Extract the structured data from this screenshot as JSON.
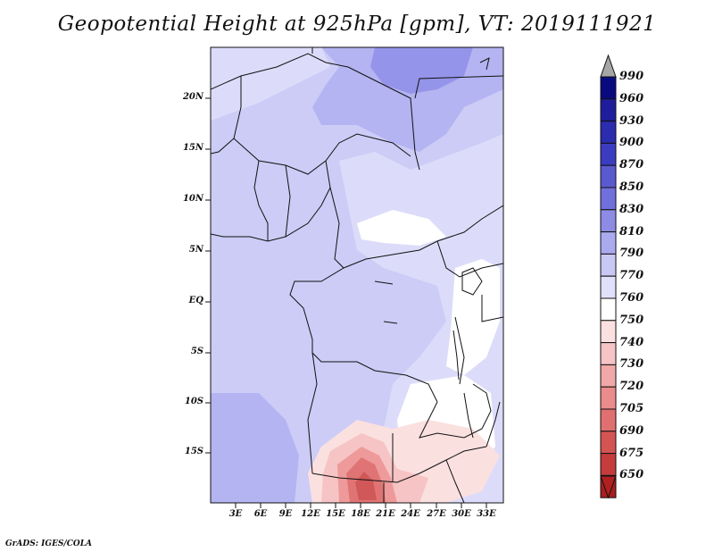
{
  "title": "Geopotential Height at 925hPa [gpm], VT: 2019111921",
  "credit": "GrADS: IGES/COLA",
  "map": {
    "lat_labels": [
      "20N",
      "15N",
      "10N",
      "5N",
      "EQ",
      "5S",
      "10S",
      "15S"
    ],
    "lon_labels": [
      "3E",
      "6E",
      "9E",
      "12E",
      "15E",
      "18E",
      "21E",
      "24E",
      "27E",
      "30E",
      "33E"
    ],
    "fill_colors": {
      "base": "#ccccf7",
      "light": "#dcdcfa",
      "darker": "#b4b4f2",
      "darkest": "#9494ea",
      "white": "#ffffff",
      "pink_light": "#fbe0e0",
      "pink": "#f6c4c4",
      "pink_mid": "#ee9a9a",
      "red": "#e07474",
      "red_dark": "#d05858"
    }
  },
  "colorbar": {
    "labels": [
      "990",
      "960",
      "930",
      "900",
      "870",
      "850",
      "830",
      "810",
      "790",
      "770",
      "760",
      "750",
      "740",
      "730",
      "720",
      "705",
      "690",
      "675",
      "650"
    ],
    "colors": [
      "#0a0a80",
      "#1e1e9c",
      "#2c2cae",
      "#3c3cc0",
      "#5a5ad0",
      "#7070dc",
      "#8c8ce4",
      "#aaaaee",
      "#c8c8f4",
      "#e0e0fa",
      "#ffffff",
      "#fbe0e0",
      "#f6c4c4",
      "#f0a8a8",
      "#ea8c8c",
      "#e07070",
      "#d45454",
      "#c43c3c",
      "#a81e1e"
    ],
    "top_arrow_color": "#a6a6a6",
    "bottom_arrow_color": "#b02020"
  }
}
